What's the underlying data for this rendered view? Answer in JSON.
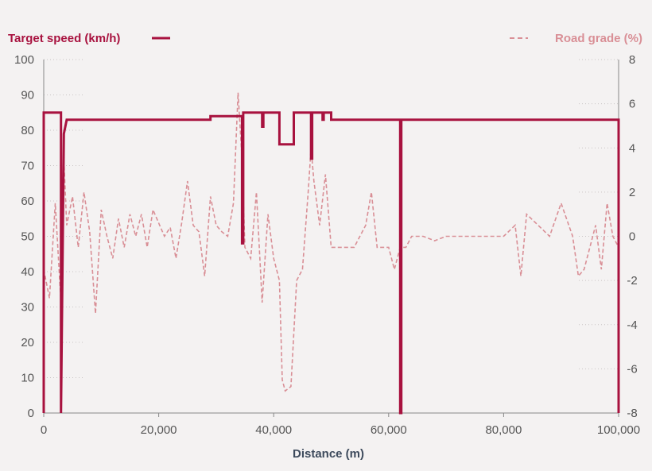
{
  "chart_data": {
    "type": "line",
    "title": "",
    "xlabel": "Distance (m)",
    "ylabel_left": "",
    "ylabel_right": "",
    "xlim": [
      0,
      100000
    ],
    "ylim_left": [
      0,
      100
    ],
    "ylim_right": [
      -8,
      8
    ],
    "x_ticks": [
      "0",
      "20,000",
      "40,000",
      "60,000",
      "80,000",
      "100,000"
    ],
    "y_left_ticks": [
      "0",
      "10",
      "20",
      "30",
      "40",
      "50",
      "60",
      "70",
      "80",
      "90",
      "100"
    ],
    "y_right_ticks": [
      "-8",
      "-6",
      "-4",
      "-2",
      "0",
      "2",
      "4",
      "6",
      "8"
    ],
    "grid": "dotted minor lines at axes",
    "legend_placement": "top",
    "colors": {
      "speed": "#a8123f",
      "grade": "#d98f96",
      "axis_text": "#555555",
      "background": "#f4f2f2"
    },
    "series": [
      {
        "name": "Target speed (km/h)",
        "axis": "left",
        "style": "solid",
        "x": [
          0,
          0,
          3000,
          3000,
          3500,
          3500,
          4000,
          4000,
          29000,
          29000,
          34500,
          34500,
          34700,
          34700,
          38000,
          38000,
          38200,
          38200,
          41000,
          41000,
          43500,
          43500,
          46500,
          46500,
          46700,
          46700,
          48500,
          48500,
          48700,
          48700,
          50000,
          50000,
          62000,
          62000,
          62200,
          62200,
          100000,
          100000
        ],
        "y": [
          0,
          85,
          85,
          0,
          79,
          79,
          83,
          83,
          83,
          84,
          84,
          48,
          48,
          85,
          85,
          81,
          81,
          85,
          85,
          76,
          76,
          85,
          85,
          72,
          72,
          85,
          85,
          83,
          83,
          85,
          85,
          83,
          83,
          0,
          0,
          83,
          83,
          0
        ]
      },
      {
        "name": "Road grade (%)",
        "axis": "right",
        "style": "dashed",
        "x": [
          0,
          1000,
          2000,
          3000,
          3500,
          4000,
          5000,
          6000,
          7000,
          8000,
          9000,
          10000,
          11000,
          12000,
          13000,
          14000,
          15000,
          16000,
          17000,
          18000,
          19000,
          20000,
          21000,
          22000,
          23000,
          24000,
          25000,
          26000,
          27000,
          28000,
          29000,
          30000,
          31000,
          32000,
          33000,
          33800,
          34500,
          35000,
          36000,
          37000,
          38000,
          39000,
          40000,
          41000,
          41500,
          42000,
          43000,
          44000,
          45000,
          46000,
          46500,
          47000,
          48000,
          49000,
          50000,
          52000,
          54000,
          56000,
          57000,
          58000,
          60000,
          61000,
          62000,
          63000,
          64000,
          66000,
          68000,
          70000,
          72000,
          74000,
          76000,
          78000,
          80000,
          82000,
          83000,
          84000,
          86000,
          88000,
          90000,
          92000,
          93000,
          94000,
          96000,
          97000,
          98000,
          99000,
          100000
        ],
        "y": [
          -1.5,
          -2.8,
          1.5,
          -3.0,
          3.5,
          0.5,
          1.8,
          -0.5,
          2.0,
          0.2,
          -3.5,
          1.2,
          0.0,
          -1.0,
          0.8,
          -0.5,
          1.0,
          0.0,
          1.0,
          -0.5,
          1.2,
          0.6,
          0.0,
          0.4,
          -1.0,
          0.6,
          2.5,
          0.5,
          0.2,
          -1.8,
          1.8,
          0.5,
          0.2,
          0.0,
          1.5,
          6.5,
          3.5,
          -0.5,
          -1.0,
          2.0,
          -3.0,
          1.0,
          -1.0,
          -2.0,
          -6.5,
          -7.0,
          -6.8,
          -2.0,
          -1.5,
          2.0,
          4.0,
          2.5,
          0.5,
          2.8,
          -0.5,
          -0.5,
          -0.5,
          0.5,
          2.0,
          -0.5,
          -0.5,
          -1.5,
          -0.5,
          -0.5,
          0.0,
          0.0,
          -0.2,
          0.0,
          0.0,
          0.0,
          0.0,
          0.0,
          0.0,
          0.5,
          -1.8,
          1.0,
          0.5,
          0.0,
          1.5,
          0.0,
          -1.8,
          -1.5,
          0.5,
          -1.5,
          1.5,
          0.0,
          -0.5
        ]
      }
    ]
  }
}
